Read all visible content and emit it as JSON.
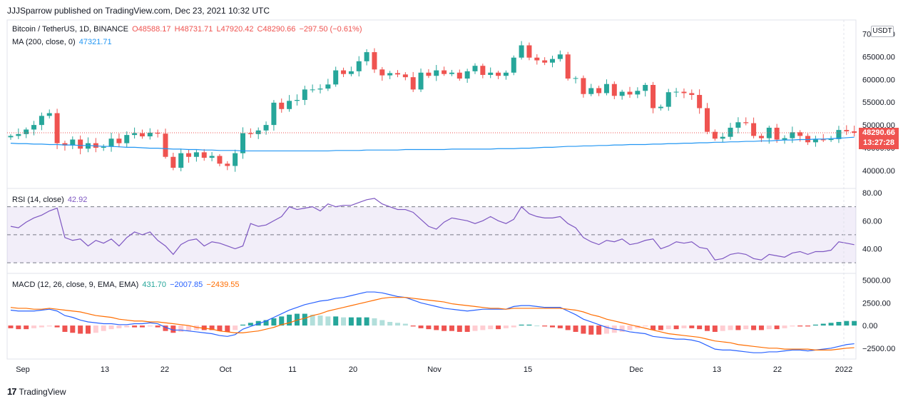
{
  "header": "JJJSparrow published on TradingView.com, Dec 23, 2021 10:32 UTC",
  "symbol": {
    "title": "Bitcoin / TetherUS, 1D, BINANCE",
    "open": "O48588.17",
    "high": "H48731.71",
    "low": "L47920.42",
    "close": "C48290.66",
    "change": "−297.50 (−0.61%)"
  },
  "ma_legend": {
    "label": "MA (200, close, 0)",
    "value": "47321.71"
  },
  "rsi_legend": {
    "label": "RSI (14, close)",
    "value": "42.92"
  },
  "macd_legend": {
    "label": "MACD (12, 26, close, 9, EMA, EMA)",
    "v1": "431.70",
    "v2": "−2007.85",
    "v3": "−2439.55"
  },
  "currency_button": "USDT",
  "price_tag": {
    "price": "48290.66",
    "countdown": "13:27:28"
  },
  "brand": "TradingView",
  "colors": {
    "up": "#26a69a",
    "down": "#ef5350",
    "ma": "#2196f3",
    "rsi": "#7e57c2",
    "macd": "#2962ff",
    "signal": "#ff6d00"
  },
  "chart_data": [
    {
      "type": "candlestick",
      "x_ticks": [
        "Sep",
        "13",
        "22",
        "Oct",
        "11",
        "20",
        "Nov",
        "15",
        "Dec",
        "13",
        "22",
        "2022"
      ],
      "y_ticks": [
        "70000.00",
        "65000.00",
        "60000.00",
        "55000.00",
        "50000.00",
        "45000.00",
        "40000.00"
      ],
      "ylim": [
        37000,
        71500
      ],
      "closes": [
        47600,
        48000,
        49000,
        50000,
        52000,
        52600,
        46000,
        45500,
        46800,
        44800,
        46000,
        45000,
        45200,
        47000,
        46000,
        47800,
        48200,
        47500,
        48300,
        48100,
        43000,
        40600,
        43800,
        43000,
        44000,
        42800,
        43200,
        41500,
        41000,
        43800,
        48200,
        48000,
        48800,
        50000,
        54900,
        53500,
        55300,
        55500,
        57800,
        57800,
        58000,
        58900,
        62000,
        61200,
        61800,
        64000,
        66000,
        62200,
        60900,
        61400,
        61100,
        60500,
        57800,
        61500,
        60800,
        62000,
        61200,
        61500,
        60200,
        61800,
        63000,
        61000,
        61500,
        60800,
        61500,
        64800,
        67500,
        64800,
        64200,
        63700,
        64500,
        65500,
        60200,
        60300,
        56800,
        58100,
        57000,
        59000,
        56400,
        57300,
        56700,
        57500,
        58800,
        53700,
        54000,
        57200,
        57300,
        57000,
        56600,
        53700,
        48500,
        47000,
        47400,
        49400,
        50600,
        50400,
        47600,
        47100,
        49400,
        46800,
        47100,
        48400,
        47600,
        46200,
        46800,
        46700,
        46900,
        48900,
        48600,
        48290
      ],
      "ma200": [
        46000,
        45900,
        45900,
        45800,
        45800,
        45700,
        45700,
        45600,
        45600,
        45500,
        45500,
        45400,
        45300,
        45300,
        45200,
        45100,
        45100,
        45000,
        44900,
        44900,
        44800,
        44700,
        44700,
        44600,
        44600,
        44500,
        44500,
        44400,
        44400,
        44400,
        44300,
        44300,
        44300,
        44300,
        44300,
        44300,
        44300,
        44300,
        44300,
        44300,
        44300,
        44300,
        44400,
        44400,
        44400,
        44400,
        44500,
        44500,
        44500,
        44500,
        44500,
        44600,
        44600,
        44600,
        44600,
        44600,
        44600,
        44700,
        44700,
        44700,
        44700,
        44700,
        44700,
        44800,
        44800,
        44800,
        44900,
        44900,
        45000,
        45100,
        45100,
        45200,
        45300,
        45300,
        45400,
        45400,
        45500,
        45500,
        45600,
        45600,
        45700,
        45700,
        45700,
        45800,
        45800,
        45900,
        45900,
        46000,
        46000,
        46100,
        46100,
        46200,
        46200,
        46300,
        46300,
        46400,
        46400,
        46500,
        46500,
        46600,
        46700,
        46700,
        46800,
        46800,
        46900,
        46900,
        47000,
        47100,
        47200,
        47321
      ]
    },
    {
      "type": "line",
      "name": "RSI",
      "y_ticks": [
        "80.00",
        "60.00",
        "40.00"
      ],
      "ylim": [
        25,
        80
      ],
      "bands": [
        70,
        50,
        30
      ],
      "values": [
        56,
        55,
        59,
        62,
        64,
        67,
        69,
        48,
        46,
        47,
        42,
        46,
        44,
        47,
        42,
        48,
        52,
        50,
        52,
        46,
        42,
        36,
        43,
        46,
        47,
        42,
        45,
        44,
        42,
        40,
        42,
        58,
        56,
        57,
        60,
        63,
        70,
        68,
        69,
        70,
        67,
        72,
        70,
        71,
        71,
        73,
        75,
        76,
        72,
        70,
        68,
        68,
        66,
        61,
        56,
        54,
        59,
        62,
        61,
        60,
        58,
        60,
        63,
        60,
        58,
        61,
        70,
        65,
        63,
        62,
        62,
        63,
        58,
        55,
        48,
        45,
        43,
        46,
        45,
        47,
        43,
        44,
        46,
        47,
        40,
        42,
        45,
        44,
        45,
        41,
        40,
        32,
        33,
        36,
        37,
        36,
        33,
        32,
        36,
        35,
        34,
        37,
        38,
        36,
        38,
        38,
        39,
        45,
        44,
        42.92
      ]
    },
    {
      "type": "bar+line",
      "name": "MACD",
      "y_ticks": [
        "5000.00",
        "2500.00",
        "0.00",
        "−2500.00"
      ],
      "ylim": [
        -3300,
        5200
      ],
      "histogram": [
        -300,
        -400,
        -400,
        -300,
        -200,
        -100,
        -200,
        -700,
        -800,
        -900,
        -900,
        -800,
        -600,
        -400,
        -300,
        -200,
        -200,
        -200,
        -100,
        -200,
        -600,
        -800,
        -700,
        -600,
        -500,
        -500,
        -500,
        -600,
        -700,
        -500,
        100,
        300,
        500,
        600,
        800,
        1000,
        1200,
        1300,
        1300,
        1200,
        1100,
        1000,
        1000,
        900,
        900,
        900,
        900,
        800,
        600,
        400,
        300,
        200,
        -100,
        -300,
        -400,
        -500,
        -600,
        -600,
        -700,
        -700,
        -600,
        -500,
        -400,
        -400,
        -300,
        -200,
        100,
        100,
        0,
        -100,
        -200,
        -300,
        -500,
        -700,
        -900,
        -1000,
        -1000,
        -900,
        -800,
        -700,
        -500,
        -300,
        -100,
        -500,
        -500,
        -400,
        -400,
        -300,
        -300,
        -400,
        -600,
        -700,
        -600,
        -500,
        -500,
        -400,
        -500,
        -500,
        -400,
        -400,
        -300,
        -100,
        -100,
        -100,
        100,
        200,
        300,
        400,
        500,
        500
      ],
      "macd": [
        1700,
        1600,
        1600,
        1600,
        1700,
        1800,
        1600,
        1100,
        900,
        600,
        400,
        300,
        200,
        200,
        100,
        100,
        200,
        200,
        300,
        200,
        -200,
        -500,
        -500,
        -600,
        -700,
        -800,
        -900,
        -1100,
        -1200,
        -1000,
        -400,
        -100,
        200,
        500,
        900,
        1300,
        1700,
        2000,
        2300,
        2500,
        2700,
        2800,
        3000,
        3100,
        3300,
        3500,
        3700,
        3700,
        3600,
        3400,
        3200,
        3100,
        2800,
        2500,
        2300,
        2100,
        1900,
        1800,
        1700,
        1600,
        1700,
        1800,
        1800,
        1800,
        1800,
        2100,
        2200,
        2200,
        2100,
        2000,
        2000,
        2000,
        1600,
        1200,
        700,
        400,
        100,
        -200,
        -400,
        -500,
        -700,
        -800,
        -900,
        -1200,
        -1300,
        -1400,
        -1500,
        -1500,
        -1600,
        -1800,
        -2200,
        -2600,
        -2700,
        -2700,
        -2800,
        -2900,
        -3000,
        -3000,
        -2900,
        -2900,
        -2800,
        -2700,
        -2700,
        -2800,
        -2700,
        -2600,
        -2500,
        -2300,
        -2100,
        -2007.85
      ]
    },
    {
      "type": "line",
      "name": "Signal",
      "values": [
        2000,
        1900,
        1900,
        1800,
        1800,
        1900,
        1800,
        1700,
        1600,
        1500,
        1300,
        1100,
        1000,
        900,
        700,
        600,
        500,
        500,
        400,
        400,
        300,
        200,
        100,
        0,
        -200,
        -300,
        -400,
        -600,
        -700,
        -800,
        -800,
        -700,
        -600,
        -400,
        -200,
        100,
        300,
        600,
        800,
        1100,
        1300,
        1600,
        1800,
        2000,
        2200,
        2400,
        2600,
        2800,
        3000,
        3100,
        3100,
        3100,
        3000,
        2900,
        2800,
        2700,
        2600,
        2400,
        2300,
        2200,
        2100,
        2000,
        1900,
        1900,
        1800,
        1900,
        1900,
        1900,
        1900,
        1900,
        1900,
        1900,
        1800,
        1700,
        1500,
        1200,
        1000,
        700,
        500,
        300,
        100,
        -100,
        -300,
        -500,
        -700,
        -900,
        -1000,
        -1100,
        -1200,
        -1300,
        -1500,
        -1700,
        -1800,
        -1900,
        -2100,
        -2200,
        -2300,
        -2400,
        -2500,
        -2500,
        -2600,
        -2600,
        -2600,
        -2600,
        -2700,
        -2700,
        -2700,
        -2600,
        -2500,
        -2439.55
      ]
    }
  ]
}
